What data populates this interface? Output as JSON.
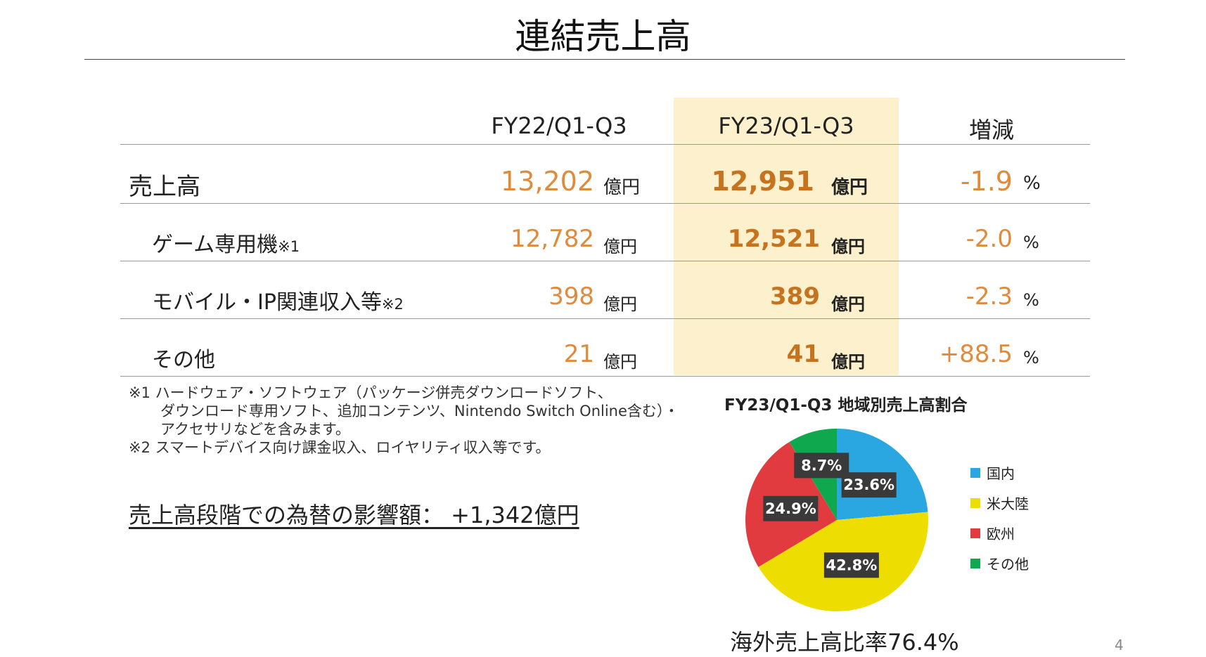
{
  "title": "連結売上高",
  "table": {
    "headers": [
      "FY22/Q1-Q3",
      "FY23/Q1-Q3",
      "増減"
    ],
    "rows": [
      {
        "label": "売上高",
        "note": "",
        "fy22": "13,202",
        "fy22_unit": "億円",
        "fy23": "12,951",
        "fy23_unit": "億円",
        "change": "-1.9",
        "change_unit": "%"
      },
      {
        "label": "ゲーム専用機",
        "note": "※1",
        "fy22": "12,782",
        "fy22_unit": "億円",
        "fy23": "12,521",
        "fy23_unit": "億円",
        "change": "-2.0",
        "change_unit": "%"
      },
      {
        "label": "モバイル・IP関連収入等",
        "note": "※2",
        "fy22": "398",
        "fy22_unit": "億円",
        "fy23": "389",
        "fy23_unit": "億円",
        "change": "-2.3",
        "change_unit": "%"
      },
      {
        "label": "その他",
        "note": "",
        "fy22": "21",
        "fy22_unit": "億円",
        "fy23": "41",
        "fy23_unit": "億円",
        "change": "+88.5",
        "change_unit": "%"
      }
    ]
  },
  "footnotes": [
    "※1 ハードウェア・ソフトウェア（パッケージ併売ダウンロードソフト、",
    "ダウンロード専用ソフト、追加コンテンツ、Nintendo Switch Online含む）・",
    "アクセサリなどを含みます。",
    "※2 スマートデバイス向け課金収入、ロイヤリティ収入等です。"
  ],
  "fx_impact": "売上高段階での為替の影響額：  +1,342億円",
  "overseas_ratio": "海外売上高比率76.4%",
  "page_number": "4",
  "chart_data": {
    "type": "pie",
    "title": "FY23/Q1-Q3 地域別売上高割合",
    "categories": [
      "国内",
      "米大陸",
      "欧州",
      "その他"
    ],
    "values": [
      23.6,
      42.8,
      24.9,
      8.7
    ],
    "labels": [
      "23.6%",
      "42.8%",
      "24.9%",
      "8.7%"
    ],
    "colors": [
      "#2aa7e0",
      "#eedd00",
      "#e23b3f",
      "#10a84e"
    ],
    "start": "12 o'clock, clockwise",
    "legend_position": "right"
  }
}
